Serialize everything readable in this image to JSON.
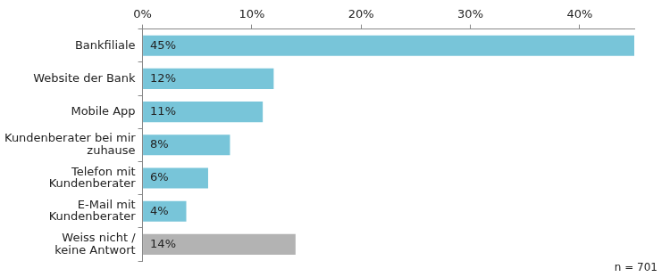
{
  "chart_data": {
    "type": "bar",
    "orientation": "horizontal",
    "categories": [
      "Bankfiliale",
      "Website der Bank",
      "Mobile App",
      "Kundenberater bei mir\nzuhause",
      "Telefon mit\nKundenberater",
      "E-Mail mit\nKundenberater",
      "Weiss nicht /\nkeine Antwort"
    ],
    "values": [
      45,
      12,
      11,
      8,
      6,
      4,
      14
    ],
    "value_labels": [
      "45%",
      "12%",
      "11%",
      "8%",
      "6%",
      "4%",
      "14%"
    ],
    "data_labels": true,
    "colors": [
      "#78c5d9",
      "#78c5d9",
      "#78c5d9",
      "#78c5d9",
      "#78c5d9",
      "#78c5d9",
      "#b3b3b3"
    ],
    "xlim": [
      0,
      45
    ],
    "xticks": [
      {
        "value": 0,
        "label": "0%"
      },
      {
        "value": 10,
        "label": "10%"
      },
      {
        "value": 20,
        "label": "20%"
      },
      {
        "value": 30,
        "label": "30%"
      },
      {
        "value": 40,
        "label": "40%"
      }
    ],
    "grid": false,
    "annotation": "n = 701"
  }
}
